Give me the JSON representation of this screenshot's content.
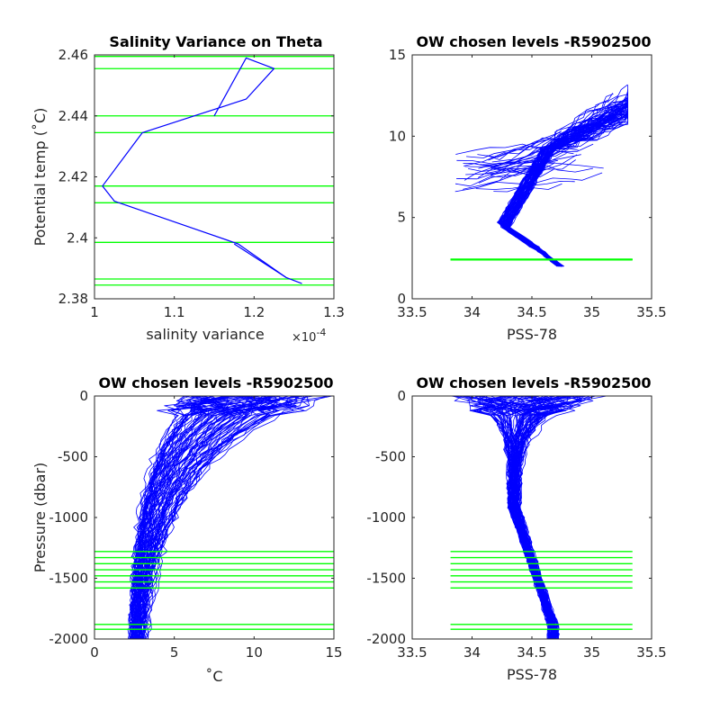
{
  "colors": {
    "profile": "#0000ff",
    "level": "#00ff00",
    "axis": "#262626"
  },
  "chart_data": [
    {
      "type": "line",
      "title": "Salinity Variance on Theta",
      "xlabel": "salinity variance",
      "x_exponent_label": "×10",
      "x_exponent_power": "-4",
      "ylabel": "Potential temp (˚C)",
      "xlim": [
        1.0,
        1.3
      ],
      "ylim": [
        2.38,
        2.46
      ],
      "x_ticks": [
        1.0,
        1.1,
        1.2,
        1.3
      ],
      "x_tick_labels": [
        "1",
        "1.1",
        "1.2",
        "1.3"
      ],
      "y_ticks": [
        2.38,
        2.4,
        2.42,
        2.44,
        2.46
      ],
      "y_tick_labels": [
        "2.38",
        "2.4",
        "2.42",
        "2.44",
        "2.46"
      ],
      "grid": false,
      "series": [
        {
          "x": [
            1.26,
            1.24,
            1.18,
            1.025,
            1.01,
            1.06,
            1.19,
            1.225,
            1.19,
            1.15
          ],
          "y": [
            2.385,
            2.387,
            2.398,
            2.412,
            2.417,
            2.4345,
            2.4455,
            2.4555,
            2.459,
            2.44
          ]
        },
        {
          "x": [
            1.24,
            1.175
          ],
          "y": [
            2.387,
            2.398
          ]
        }
      ],
      "hlines": [
        2.3845,
        2.3865,
        2.3985,
        2.4115,
        2.417,
        2.4345,
        2.44,
        2.4555,
        2.4595
      ]
    },
    {
      "type": "line",
      "title": "OW chosen levels -R5902500",
      "xlabel": "PSS-78",
      "ylabel": "",
      "xlim": [
        33.5,
        35.5
      ],
      "ylim": [
        0,
        15
      ],
      "x_ticks": [
        33.5,
        34.0,
        34.5,
        35.0,
        35.5
      ],
      "x_tick_labels": [
        "33.5",
        "34",
        "34.5",
        "35",
        "35.5"
      ],
      "y_ticks": [
        0,
        5,
        10,
        15
      ],
      "y_tick_labels": [
        "0",
        "5",
        "10",
        "15"
      ],
      "grid": false,
      "hlines": [
        2.39,
        2.41,
        2.42,
        2.44
      ],
      "hline_xrange": [
        33.82,
        35.34
      ]
    },
    {
      "type": "line",
      "title": "OW chosen levels -R5902500",
      "xlabel": "˚C",
      "ylabel": "Pressure (dbar)",
      "xlim": [
        0,
        15
      ],
      "ylim": [
        -2000,
        0
      ],
      "x_ticks": [
        0,
        5,
        10,
        15
      ],
      "x_tick_labels": [
        "0",
        "5",
        "10",
        "15"
      ],
      "y_ticks": [
        -2000,
        -1500,
        -1000,
        -500,
        0
      ],
      "y_tick_labels": [
        "-2000",
        "-1500",
        "-1000",
        "-500",
        "0"
      ],
      "grid": false,
      "hlines": [
        -1280,
        -1330,
        -1380,
        -1430,
        -1480,
        -1530,
        -1580,
        -1880,
        -1920
      ]
    },
    {
      "type": "line",
      "title": "OW chosen levels -R5902500",
      "xlabel": "PSS-78",
      "ylabel": "",
      "xlim": [
        33.5,
        35.5
      ],
      "ylim": [
        -2000,
        0
      ],
      "x_ticks": [
        33.5,
        34.0,
        34.5,
        35.0,
        35.5
      ],
      "x_tick_labels": [
        "33.5",
        "34",
        "34.5",
        "35",
        "35.5"
      ],
      "y_ticks": [
        -2000,
        -1500,
        -1000,
        -500,
        0
      ],
      "y_tick_labels": [
        "-2000",
        "-1500",
        "-1000",
        "-500",
        "0"
      ],
      "grid": false,
      "hlines": [
        -1280,
        -1330,
        -1380,
        -1430,
        -1480,
        -1530,
        -1580,
        -1880,
        -1920
      ],
      "hline_xrange": [
        33.82,
        35.34
      ]
    }
  ]
}
